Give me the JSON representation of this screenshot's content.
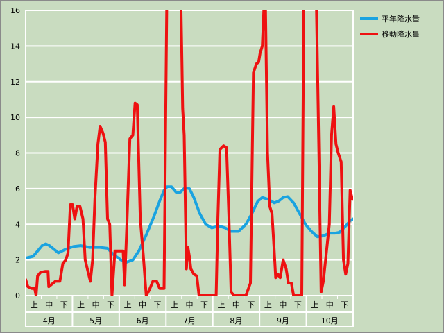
{
  "chart_data": {
    "type": "line",
    "title": "",
    "xlabel": "",
    "ylabel": "",
    "ylim": [
      0,
      16
    ],
    "yticks": [
      0,
      2,
      4,
      6,
      8,
      10,
      12,
      14,
      16
    ],
    "grid": "horizontal",
    "legend_position": "top-right",
    "months": [
      "4月",
      "5月",
      "6月",
      "7月",
      "8月",
      "9月",
      "10月"
    ],
    "periods": [
      "上",
      "中",
      "下"
    ],
    "x_unit": "旬 (上/中/下) index, 0 = 4月上 … 20 = 10月下",
    "series": [
      {
        "name": "平年降水量",
        "color": "#1aa3e0",
        "points": [
          [
            -0.5,
            2.1
          ],
          [
            0.0,
            2.2
          ],
          [
            0.3,
            2.5
          ],
          [
            0.6,
            2.8
          ],
          [
            0.85,
            2.9
          ],
          [
            1.1,
            2.8
          ],
          [
            1.4,
            2.6
          ],
          [
            1.7,
            2.4
          ],
          [
            2.2,
            2.6
          ],
          [
            2.7,
            2.75
          ],
          [
            3.2,
            2.8
          ],
          [
            3.8,
            2.7
          ],
          [
            4.5,
            2.7
          ],
          [
            5.0,
            2.65
          ],
          [
            5.4,
            2.3
          ],
          [
            5.9,
            2.0
          ],
          [
            6.2,
            1.85
          ],
          [
            6.7,
            2.0
          ],
          [
            7.1,
            2.5
          ],
          [
            7.6,
            3.4
          ],
          [
            8.1,
            4.4
          ],
          [
            8.5,
            5.3
          ],
          [
            8.8,
            5.9
          ],
          [
            9.0,
            6.1
          ],
          [
            9.3,
            6.1
          ],
          [
            9.6,
            5.8
          ],
          [
            9.9,
            5.8
          ],
          [
            10.2,
            6.05
          ],
          [
            10.5,
            6.0
          ],
          [
            10.8,
            5.5
          ],
          [
            11.2,
            4.6
          ],
          [
            11.6,
            4.0
          ],
          [
            12.0,
            3.8
          ],
          [
            12.5,
            3.9
          ],
          [
            12.9,
            3.8
          ],
          [
            13.3,
            3.6
          ],
          [
            13.8,
            3.6
          ],
          [
            14.3,
            4.0
          ],
          [
            14.7,
            4.6
          ],
          [
            15.1,
            5.3
          ],
          [
            15.4,
            5.5
          ],
          [
            15.8,
            5.4
          ],
          [
            16.2,
            5.2
          ],
          [
            16.5,
            5.3
          ],
          [
            16.8,
            5.5
          ],
          [
            17.1,
            5.55
          ],
          [
            17.5,
            5.2
          ],
          [
            17.9,
            4.6
          ],
          [
            18.3,
            4.0
          ],
          [
            18.7,
            3.6
          ],
          [
            19.1,
            3.3
          ],
          [
            19.5,
            3.35
          ],
          [
            19.9,
            3.5
          ],
          [
            20.3,
            3.5
          ],
          [
            20.6,
            3.55
          ],
          [
            21.0,
            3.9
          ],
          [
            21.3,
            4.2
          ],
          [
            21.5,
            4.3
          ],
          [
            21.75,
            4.3
          ]
        ]
      },
      {
        "name": "移動降水量",
        "color": "#ee1111",
        "points": [
          [
            -0.5,
            0.9
          ],
          [
            -0.35,
            0.5
          ],
          [
            -0.1,
            0.4
          ],
          [
            0.1,
            0.4
          ],
          [
            0.2,
            0.0
          ],
          [
            0.3,
            1.1
          ],
          [
            0.5,
            1.3
          ],
          [
            0.8,
            1.35
          ],
          [
            1.0,
            1.35
          ],
          [
            1.05,
            0.5
          ],
          [
            1.2,
            0.6
          ],
          [
            1.5,
            0.8
          ],
          [
            1.8,
            0.8
          ],
          [
            2.0,
            1.8
          ],
          [
            2.2,
            2.0
          ],
          [
            2.35,
            2.4
          ],
          [
            2.5,
            5.1
          ],
          [
            2.65,
            5.1
          ],
          [
            2.8,
            4.3
          ],
          [
            2.95,
            5.0
          ],
          [
            3.15,
            5.0
          ],
          [
            3.35,
            4.3
          ],
          [
            3.5,
            2.0
          ],
          [
            3.7,
            1.3
          ],
          [
            3.85,
            0.8
          ],
          [
            4.0,
            2.0
          ],
          [
            4.15,
            5.4
          ],
          [
            4.35,
            8.5
          ],
          [
            4.5,
            9.5
          ],
          [
            4.7,
            9.1
          ],
          [
            4.85,
            8.6
          ],
          [
            5.0,
            4.3
          ],
          [
            5.15,
            4.0
          ],
          [
            5.3,
            0.0
          ],
          [
            5.5,
            2.5
          ],
          [
            5.7,
            2.5
          ],
          [
            5.9,
            2.5
          ],
          [
            6.05,
            2.5
          ],
          [
            6.15,
            0.6
          ],
          [
            6.3,
            4.0
          ],
          [
            6.5,
            8.8
          ],
          [
            6.7,
            9.0
          ],
          [
            6.85,
            10.8
          ],
          [
            7.0,
            10.7
          ],
          [
            7.2,
            4.3
          ],
          [
            7.4,
            2.3
          ],
          [
            7.6,
            0.0
          ],
          [
            7.8,
            0.3
          ],
          [
            8.05,
            0.8
          ],
          [
            8.3,
            0.8
          ],
          [
            8.5,
            0.4
          ],
          [
            8.7,
            0.4
          ],
          [
            8.8,
            0.4
          ],
          [
            9.0,
            18.0
          ],
          [
            9.9,
            18.0
          ],
          [
            10.0,
            13.0
          ],
          [
            10.05,
            10.5
          ],
          [
            10.15,
            9.0
          ],
          [
            10.3,
            1.5
          ],
          [
            10.4,
            2.7
          ],
          [
            10.5,
            2.2
          ],
          [
            10.6,
            1.5
          ],
          [
            10.8,
            1.2
          ],
          [
            11.0,
            1.1
          ],
          [
            11.15,
            0.0
          ],
          [
            12.0,
            0.0
          ],
          [
            12.3,
            0.0
          ],
          [
            12.4,
            4.0
          ],
          [
            12.55,
            8.2
          ],
          [
            12.8,
            8.4
          ],
          [
            13.0,
            8.3
          ],
          [
            13.15,
            4.5
          ],
          [
            13.3,
            0.2
          ],
          [
            13.5,
            0.0
          ],
          [
            14.0,
            0.0
          ],
          [
            14.3,
            0.0
          ],
          [
            14.6,
            0.7
          ],
          [
            14.8,
            12.5
          ],
          [
            15.0,
            13.0
          ],
          [
            15.15,
            13.1
          ],
          [
            15.25,
            13.6
          ],
          [
            15.4,
            14.0
          ],
          [
            15.5,
            16.0
          ],
          [
            15.6,
            17.0
          ],
          [
            15.75,
            8.0
          ],
          [
            15.9,
            5.0
          ],
          [
            16.05,
            4.6
          ],
          [
            16.2,
            2.5
          ],
          [
            16.3,
            1.0
          ],
          [
            16.45,
            1.2
          ],
          [
            16.6,
            1.0
          ],
          [
            16.8,
            2.0
          ],
          [
            17.0,
            1.5
          ],
          [
            17.15,
            0.7
          ],
          [
            17.35,
            0.7
          ],
          [
            17.5,
            0.0
          ],
          [
            18.05,
            0.0
          ],
          [
            18.2,
            18.0
          ],
          [
            19.0,
            18.0
          ],
          [
            19.2,
            8.0
          ],
          [
            19.35,
            0.2
          ],
          [
            19.5,
            0.8
          ],
          [
            19.7,
            2.4
          ],
          [
            19.9,
            4.0
          ],
          [
            20.05,
            9.0
          ],
          [
            20.2,
            10.6
          ],
          [
            20.35,
            8.5
          ],
          [
            20.5,
            8.0
          ],
          [
            20.7,
            7.5
          ],
          [
            20.85,
            2.0
          ],
          [
            21.0,
            1.2
          ],
          [
            21.15,
            1.8
          ],
          [
            21.3,
            5.9
          ],
          [
            21.45,
            5.4
          ],
          [
            21.65,
            5.4
          ],
          [
            21.8,
            4.6
          ],
          [
            21.95,
            0.2
          ],
          [
            22.1,
            0.6
          ],
          [
            22.3,
            0.7
          ],
          [
            22.5,
            0.7
          ],
          [
            22.65,
            0.8
          ],
          [
            22.75,
            1.1
          ]
        ]
      }
    ]
  }
}
